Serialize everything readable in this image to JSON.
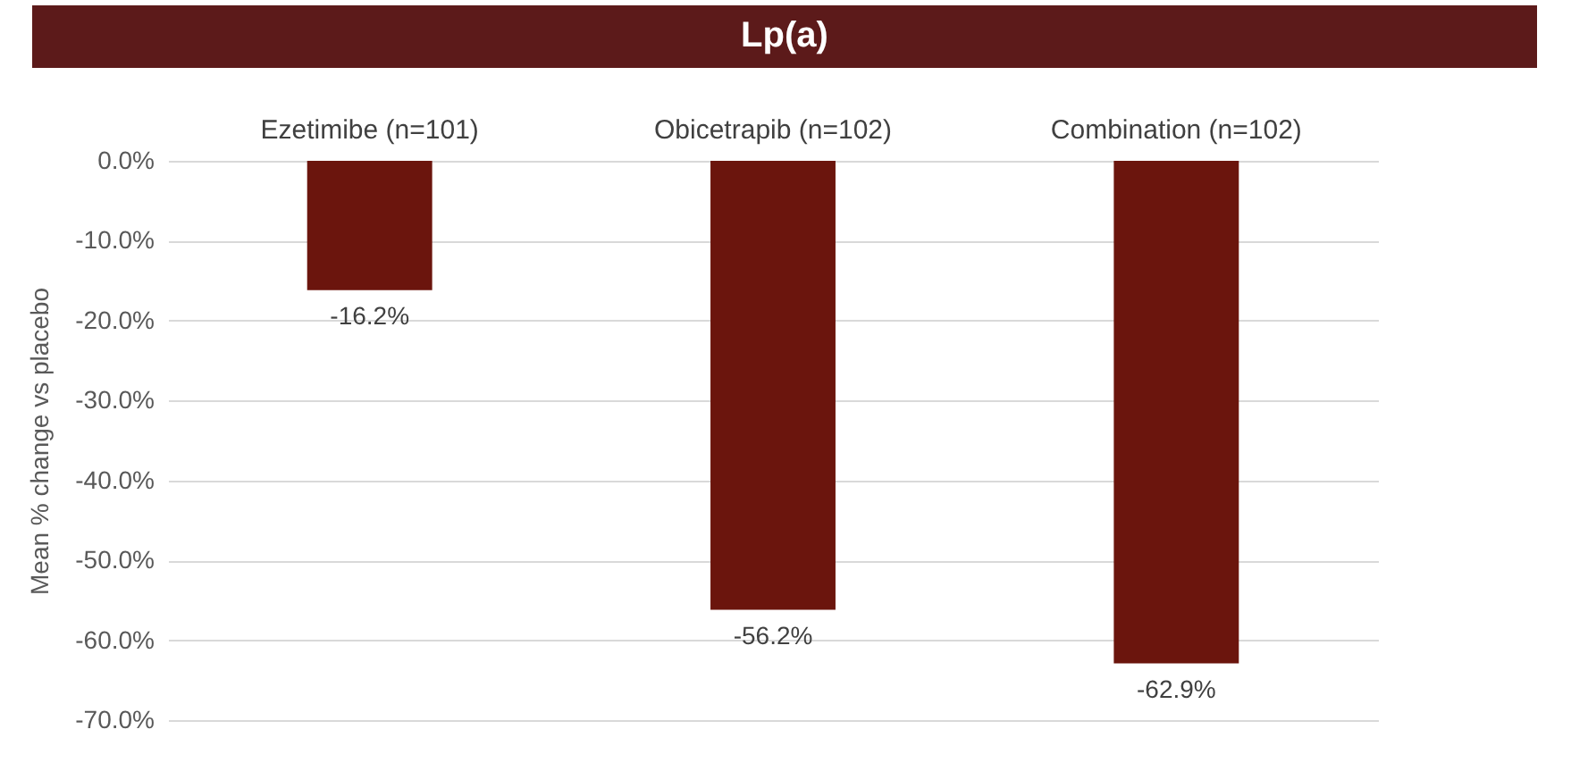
{
  "chart_data": {
    "type": "bar",
    "title": "Lp(a)",
    "ylabel": "Mean % change vs placebo",
    "categories": [
      "Ezetimibe (n=101)",
      "Obicetrapib (n=102)",
      "Combination (n=102)"
    ],
    "values": [
      -16.2,
      -56.2,
      -62.9
    ],
    "color": "#6b150d",
    "value_labels": [
      "-16.2%",
      "-56.2%",
      "-62.9%"
    ],
    "ylim": [
      -70,
      0
    ],
    "yticks": [
      {
        "value": 0,
        "label": "0.0%"
      },
      {
        "value": -10,
        "label": "-10.0%"
      },
      {
        "value": -20,
        "label": "-20.0%"
      },
      {
        "value": -30,
        "label": "-30.0%"
      },
      {
        "value": -40,
        "label": "-40.0%"
      },
      {
        "value": -50,
        "label": "-50.0%"
      },
      {
        "value": -60,
        "label": "-60.0%"
      },
      {
        "value": -70,
        "label": "-70.0%"
      }
    ],
    "grid": "y"
  }
}
